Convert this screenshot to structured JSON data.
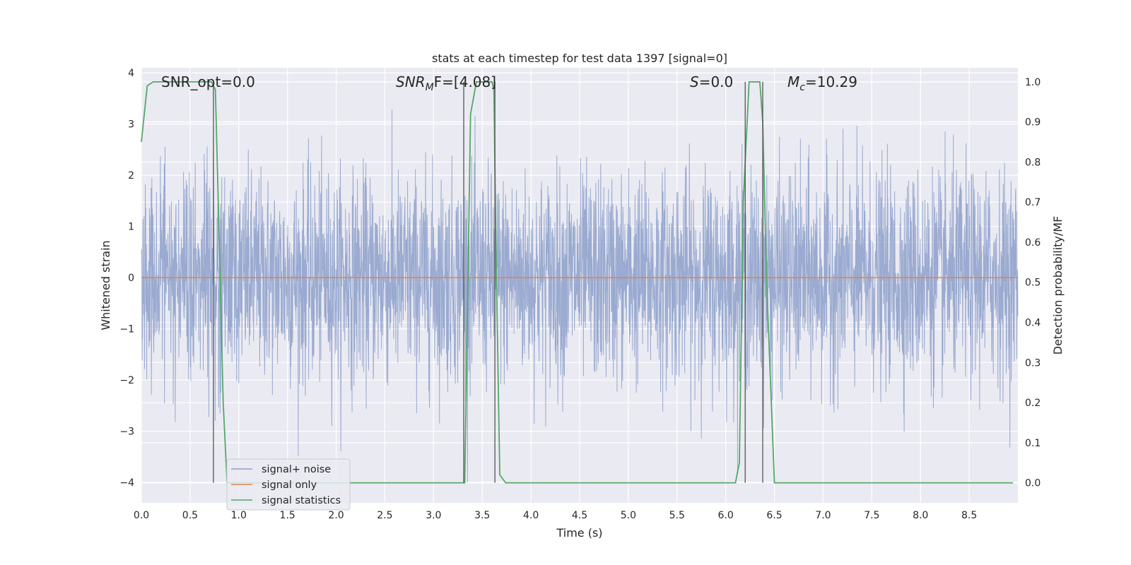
{
  "chart_data": {
    "type": "line",
    "title": "stats at each timestep for test data 1397 [signal=0]",
    "xlabel": "Time (s)",
    "ylabel_left": "Whitened strain",
    "ylabel_right": "Detection probability/MF",
    "xlim": [
      0,
      9
    ],
    "ylim_left": [
      -4.4,
      4.1
    ],
    "ylim_right": [
      -0.05,
      1.035
    ],
    "x_ticks": [
      "0.0",
      "0.5",
      "1.0",
      "1.5",
      "2.0",
      "2.5",
      "3.0",
      "3.5",
      "4.0",
      "4.5",
      "5.0",
      "5.5",
      "6.0",
      "6.5",
      "7.0",
      "7.5",
      "8.0",
      "8.5"
    ],
    "y_ticks_left": [
      "4",
      "3",
      "2",
      "1",
      "0",
      "−1",
      "−2",
      "−3",
      "−4"
    ],
    "y_ticks_right": [
      "1.0",
      "0.9",
      "0.8",
      "0.7",
      "0.6",
      "0.5",
      "0.4",
      "0.3",
      "0.2",
      "0.1",
      "0.0"
    ],
    "grid": true,
    "legend_position": "lower-left",
    "annotations": {
      "snr_opt": "SNR_opt=0.0",
      "snr_mf_sym": "SNR",
      "snr_mf_sub": "M",
      "snr_mf_rest": "F=[4.08]",
      "s_sym": "S",
      "s_rest": "=0.0",
      "mc_sym": "M",
      "mc_sub": "c",
      "mc_rest": "=10.29"
    },
    "series": [
      {
        "name": "signal+ noise",
        "color": "#8c9fca",
        "description_values": "whitened strain noise, roughly Gaussian between -4 and 3.9",
        "envelope_upper": [
          [
            0,
            1.7
          ],
          [
            0.5,
            2.1
          ],
          [
            1,
            1.9
          ],
          [
            2,
            2.2
          ],
          [
            3,
            2.0
          ],
          [
            3.5,
            2.4
          ],
          [
            4,
            2.2
          ],
          [
            5,
            2.0
          ],
          [
            6,
            2.1
          ],
          [
            7,
            2.3
          ],
          [
            8,
            2.1
          ],
          [
            9,
            2.0
          ]
        ],
        "envelope_lower": [
          [
            0,
            -1.6
          ],
          [
            0.5,
            -2.0
          ],
          [
            1,
            -1.9
          ],
          [
            2,
            -2.1
          ],
          [
            3,
            -2.0
          ],
          [
            4,
            -2.1
          ],
          [
            5,
            -1.9
          ],
          [
            6,
            -2.1
          ],
          [
            7,
            -2.0
          ],
          [
            8,
            -2.1
          ],
          [
            9,
            -1.8
          ]
        ]
      },
      {
        "name": "signal only",
        "color": "#dd8452",
        "x": [
          0,
          9
        ],
        "y": [
          0,
          0
        ]
      },
      {
        "name": "signal statistics",
        "color": "#55a868",
        "x": [
          0.0,
          0.06,
          0.12,
          0.25,
          0.5,
          0.72,
          0.76,
          0.8,
          0.84,
          0.88,
          3.3,
          3.32,
          3.34,
          3.38,
          3.44,
          3.5,
          3.6,
          3.62,
          3.64,
          3.68,
          3.74,
          3.8,
          4.5,
          5.0,
          6.1,
          6.14,
          6.18,
          6.24,
          6.3,
          6.35,
          6.38,
          6.42,
          6.5,
          6.55,
          8.95
        ],
        "y": [
          0.85,
          0.99,
          1.0,
          1.0,
          1.0,
          1.0,
          0.98,
          0.6,
          0.2,
          0.0,
          0.0,
          0.0,
          0.3,
          0.92,
          1.0,
          1.0,
          1.0,
          0.98,
          0.6,
          0.02,
          0.0,
          0.0,
          0.0,
          0.0,
          0.0,
          0.05,
          0.7,
          1.0,
          1.0,
          1.0,
          0.9,
          0.5,
          0.0,
          0.0,
          0.0
        ]
      }
    ],
    "vertical_markers_x": [
      0.74,
      3.31,
      3.63,
      6.2,
      6.38
    ]
  }
}
